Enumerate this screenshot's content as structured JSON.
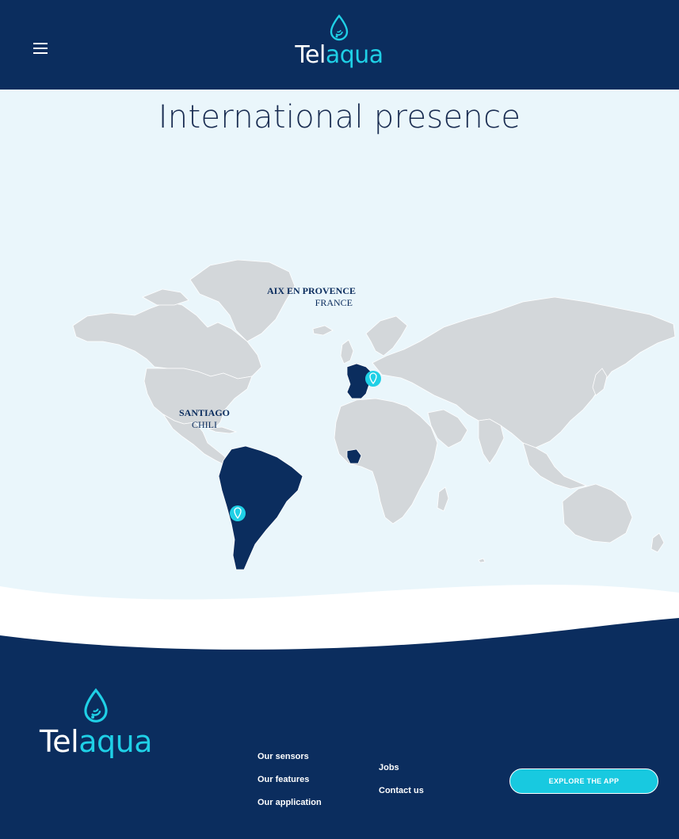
{
  "header": {
    "menu_icon": "hamburger-menu-icon",
    "logo_part1": "Tel",
    "logo_part2": "aqua",
    "logo_icon": "water-drop-icon"
  },
  "main": {
    "title": "International presence",
    "locations": [
      {
        "city": "AIX EN PROVENCE",
        "country": "FRANCE",
        "icon": "location-pin-icon"
      },
      {
        "city": "SANTIAGO",
        "country": "CHILI",
        "icon": "location-pin-icon"
      }
    ]
  },
  "footer": {
    "logo_part1": "Tel",
    "logo_part2": "aqua",
    "links_col1": [
      "Our sensors",
      "Our features",
      "Our application"
    ],
    "links_col2": [
      "Jobs",
      "Contact us"
    ],
    "cta_label": "EXPLORE THE APP"
  },
  "colors": {
    "navy": "#0b2d5e",
    "accent": "#1fd0e6",
    "map_land": "#d3d7da",
    "map_highlight": "#0b2d5e",
    "background": "#eaf6fb"
  }
}
